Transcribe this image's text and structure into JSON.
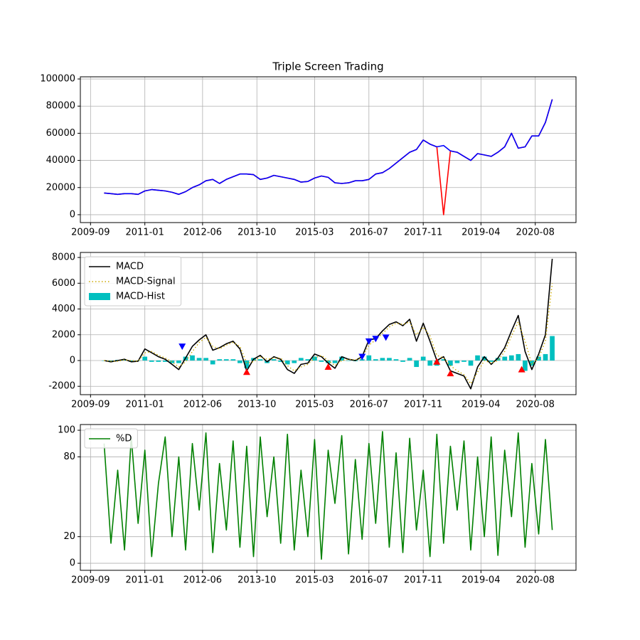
{
  "chart_data": [
    {
      "type": "line",
      "title": "Triple Screen Trading",
      "x": [
        "2010-01",
        "2010-03",
        "2010-05",
        "2010-07",
        "2010-09",
        "2010-11",
        "2011-01",
        "2011-03",
        "2011-05",
        "2011-07",
        "2011-09",
        "2011-11",
        "2012-01",
        "2012-03",
        "2012-05",
        "2012-07",
        "2012-09",
        "2012-11",
        "2013-01",
        "2013-03",
        "2013-05",
        "2013-07",
        "2013-09",
        "2013-11",
        "2014-01",
        "2014-03",
        "2014-05",
        "2014-07",
        "2014-09",
        "2014-11",
        "2015-01",
        "2015-03",
        "2015-05",
        "2015-07",
        "2015-09",
        "2015-11",
        "2016-01",
        "2016-03",
        "2016-05",
        "2016-07",
        "2016-09",
        "2016-11",
        "2017-01",
        "2017-03",
        "2017-05",
        "2017-07",
        "2017-09",
        "2017-11",
        "2018-01",
        "2018-03",
        "2018-05",
        "2018-07",
        "2018-09",
        "2018-11",
        "2019-01",
        "2019-03",
        "2019-05",
        "2019-07",
        "2019-09",
        "2019-11",
        "2020-01",
        "2020-03",
        "2020-05",
        "2020-07",
        "2020-09",
        "2020-11",
        "2021-01"
      ],
      "series": [
        {
          "color": "#ff0000",
          "values": [
            16000,
            15500,
            15000,
            15500,
            15500,
            15000,
            17500,
            18500,
            18000,
            17500,
            16500,
            15000,
            17000,
            20000,
            22000,
            25000,
            26000,
            23000,
            26000,
            28000,
            30000,
            30000,
            29500,
            26000,
            27000,
            29000,
            28000,
            27000,
            26000,
            24000,
            24500,
            27000,
            28500,
            27500,
            23500,
            23000,
            23500,
            25000,
            25000,
            26000,
            30000,
            31000,
            34000,
            38000,
            42000,
            46000,
            48000,
            55000,
            52000,
            50000,
            0,
            47000,
            46000,
            43000,
            40000,
            45000,
            44000,
            43000,
            46000,
            50000,
            60000,
            49000,
            50000,
            58000,
            58000,
            68000,
            85000
          ]
        },
        {
          "color": "#0000ff",
          "values": [
            16000,
            15500,
            15000,
            15500,
            15500,
            15000,
            17500,
            18500,
            18000,
            17500,
            16500,
            15000,
            17000,
            20000,
            22000,
            25000,
            26000,
            23000,
            26000,
            28000,
            30000,
            30000,
            29500,
            26000,
            27000,
            29000,
            28000,
            27000,
            26000,
            24000,
            24500,
            27000,
            28500,
            27500,
            23500,
            23000,
            23500,
            25000,
            25000,
            26000,
            30000,
            31000,
            34000,
            38000,
            42000,
            46000,
            48000,
            55000,
            52000,
            50000,
            51000,
            47000,
            46000,
            43000,
            40000,
            45000,
            44000,
            43000,
            46000,
            50000,
            60000,
            49000,
            50000,
            58000,
            58000,
            68000,
            85000
          ]
        }
      ],
      "xlim": [
        "2009-06",
        "2021-08"
      ],
      "xticks": [
        "2009-09",
        "2011-01",
        "2012-06",
        "2013-10",
        "2015-03",
        "2016-07",
        "2017-11",
        "2019-04",
        "2020-08"
      ],
      "ylim": [
        -5800,
        101600
      ],
      "yticks": [
        0,
        20000,
        40000,
        60000,
        80000,
        100000
      ],
      "grid": true
    },
    {
      "type": "line",
      "legend": "upper left",
      "x": [
        "2010-01",
        "2010-03",
        "2010-05",
        "2010-07",
        "2010-09",
        "2010-11",
        "2011-01",
        "2011-03",
        "2011-05",
        "2011-07",
        "2011-09",
        "2011-11",
        "2012-01",
        "2012-03",
        "2012-05",
        "2012-07",
        "2012-09",
        "2012-11",
        "2013-01",
        "2013-03",
        "2013-05",
        "2013-07",
        "2013-09",
        "2013-11",
        "2014-01",
        "2014-03",
        "2014-05",
        "2014-07",
        "2014-09",
        "2014-11",
        "2015-01",
        "2015-03",
        "2015-05",
        "2015-07",
        "2015-09",
        "2015-11",
        "2016-01",
        "2016-03",
        "2016-05",
        "2016-07",
        "2016-09",
        "2016-11",
        "2017-01",
        "2017-03",
        "2017-05",
        "2017-07",
        "2017-09",
        "2017-11",
        "2018-01",
        "2018-03",
        "2018-05",
        "2018-07",
        "2018-09",
        "2018-11",
        "2019-01",
        "2019-03",
        "2019-05",
        "2019-07",
        "2019-09",
        "2019-11",
        "2020-01",
        "2020-03",
        "2020-05",
        "2020-07",
        "2020-09",
        "2020-11",
        "2021-01"
      ],
      "series": [
        {
          "name": "MACD",
          "color": "#000000",
          "values": [
            0,
            -100,
            0,
            100,
            -100,
            -50,
            900,
            600,
            300,
            100,
            -300,
            -700,
            200,
            1100,
            1600,
            2000,
            800,
            1000,
            1300,
            1500,
            900,
            -800,
            100,
            400,
            -100,
            300,
            100,
            -700,
            -1000,
            -300,
            -200,
            500,
            300,
            -200,
            -600,
            300,
            100,
            0,
            300,
            1600,
            1700,
            2300,
            2800,
            3000,
            2700,
            3200,
            1500,
            2900,
            1500,
            0,
            300,
            -800,
            -1000,
            -1200,
            -2200,
            -500,
            300,
            -300,
            200,
            1000,
            2300,
            3500,
            700,
            -700,
            500,
            2000,
            7900
          ]
        },
        {
          "name": "MACD-Signal",
          "color": "#ccaa00",
          "linestyle": "dotted",
          "values": [
            0,
            -50,
            -50,
            50,
            0,
            -50,
            600,
            700,
            400,
            200,
            -100,
            -500,
            -100,
            700,
            1400,
            1800,
            1100,
            900,
            1200,
            1400,
            1100,
            -200,
            -100,
            300,
            100,
            200,
            200,
            -400,
            -800,
            -500,
            -300,
            200,
            400,
            0,
            -400,
            0,
            100,
            50,
            200,
            1200,
            1600,
            2100,
            2600,
            2900,
            2800,
            3000,
            2000,
            2600,
            1900,
            400,
            200,
            -400,
            -800,
            -1100,
            -1800,
            -900,
            0,
            -200,
            0,
            700,
            1900,
            3000,
            1500,
            -300,
            200,
            1500,
            6000
          ]
        },
        {
          "name": "MACD-Hist",
          "color": "#00bfbf",
          "kind": "bar",
          "values": [
            0,
            -50,
            50,
            50,
            -100,
            0,
            300,
            -100,
            -100,
            -100,
            -200,
            -200,
            300,
            400,
            200,
            200,
            -300,
            100,
            100,
            100,
            -200,
            -600,
            200,
            100,
            -200,
            100,
            -100,
            -300,
            -200,
            200,
            100,
            300,
            -100,
            -200,
            -200,
            300,
            0,
            -50,
            100,
            400,
            100,
            200,
            200,
            100,
            -100,
            200,
            -500,
            300,
            -400,
            -400,
            100,
            -400,
            -200,
            -100,
            -400,
            400,
            300,
            -100,
            200,
            300,
            400,
            500,
            -800,
            -400,
            300,
            500,
            1900
          ]
        }
      ],
      "markers": [
        {
          "color": "#0000ff",
          "marker": "v",
          "x": [
            "2011-12",
            "2016-05",
            "2016-07",
            "2016-09",
            "2016-12"
          ],
          "values": [
            1100,
            300,
            1500,
            1700,
            1800
          ]
        },
        {
          "color": "#ff0000",
          "marker": "^",
          "x": [
            "2013-07",
            "2015-07",
            "2018-03",
            "2018-07",
            "2020-04"
          ],
          "values": [
            -900,
            -500,
            -100,
            -1000,
            -700
          ]
        }
      ],
      "xlim": [
        "2009-06",
        "2021-08"
      ],
      "xticks": [
        "2009-09",
        "2011-01",
        "2012-06",
        "2013-10",
        "2015-03",
        "2016-07",
        "2017-11",
        "2019-04",
        "2020-08"
      ],
      "ylim": [
        -2650,
        8390
      ],
      "yticks": [
        -2000,
        0,
        2000,
        4000,
        6000,
        8000
      ],
      "grid": true
    },
    {
      "type": "line",
      "legend": "upper left",
      "x": [
        "2010-01",
        "2010-03",
        "2010-05",
        "2010-07",
        "2010-09",
        "2010-11",
        "2011-01",
        "2011-03",
        "2011-05",
        "2011-07",
        "2011-09",
        "2011-11",
        "2012-01",
        "2012-03",
        "2012-05",
        "2012-07",
        "2012-09",
        "2012-11",
        "2013-01",
        "2013-03",
        "2013-05",
        "2013-07",
        "2013-09",
        "2013-11",
        "2014-01",
        "2014-03",
        "2014-05",
        "2014-07",
        "2014-09",
        "2014-11",
        "2015-01",
        "2015-03",
        "2015-05",
        "2015-07",
        "2015-09",
        "2015-11",
        "2016-01",
        "2016-03",
        "2016-05",
        "2016-07",
        "2016-09",
        "2016-11",
        "2017-01",
        "2017-03",
        "2017-05",
        "2017-07",
        "2017-09",
        "2017-11",
        "2018-01",
        "2018-03",
        "2018-05",
        "2018-07",
        "2018-09",
        "2018-11",
        "2019-01",
        "2019-03",
        "2019-05",
        "2019-07",
        "2019-09",
        "2019-11",
        "2020-01",
        "2020-03",
        "2020-05",
        "2020-07",
        "2020-09",
        "2020-11",
        "2021-01"
      ],
      "series": [
        {
          "name": "%D",
          "color": "#008000",
          "values": [
            90,
            15,
            70,
            10,
            95,
            30,
            85,
            5,
            60,
            95,
            20,
            80,
            10,
            90,
            40,
            98,
            8,
            75,
            25,
            92,
            12,
            88,
            5,
            95,
            35,
            80,
            15,
            97,
            10,
            70,
            20,
            93,
            3,
            85,
            45,
            96,
            7,
            78,
            18,
            90,
            30,
            99,
            12,
            83,
            8,
            94,
            25,
            70,
            5,
            97,
            15,
            88,
            40,
            92,
            10,
            80,
            20,
            95,
            6,
            85,
            35,
            98,
            12,
            75,
            22,
            93,
            25
          ]
        }
      ],
      "xlim": [
        "2009-06",
        "2021-08"
      ],
      "xticks": [
        "2009-09",
        "2011-01",
        "2012-06",
        "2013-10",
        "2015-03",
        "2016-07",
        "2017-11",
        "2019-04",
        "2020-08"
      ],
      "ylim": [
        -5.3,
        104.3
      ],
      "yticks": [
        0,
        20,
        80,
        100
      ],
      "grid": true
    }
  ]
}
